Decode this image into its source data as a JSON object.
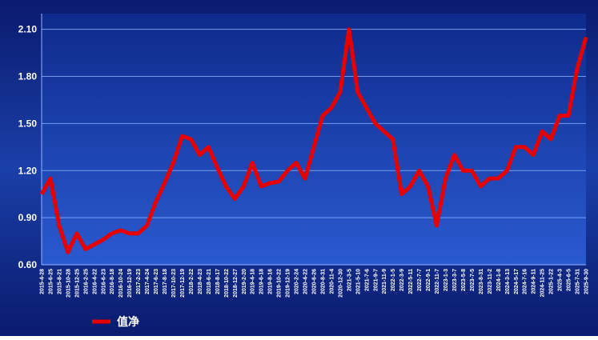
{
  "chart_data": {
    "type": "line",
    "categories": [
      "2015-4-28",
      "2015-6-25",
      "2015-8-21",
      "2015-10-28",
      "2015-12-25",
      "2016-2-25",
      "2016-4-22",
      "2016-6-23",
      "2016-8-18",
      "2016-10-24",
      "2016-12-19",
      "2017-2-23",
      "2017-4-24",
      "2017-6-23",
      "2017-8-18",
      "2017-10-23",
      "2017-12-19",
      "2018-2-22",
      "2018-4-23",
      "2018-6-21",
      "2018-8-17",
      "2018-10-22",
      "2018-12-27",
      "2019-2-20",
      "2019-4-18",
      "2019-6-18",
      "2019-8-16",
      "2019-10-22",
      "2019-12-19",
      "2020-2-24",
      "2020-4-22",
      "2020-6-26",
      "2020-8-31",
      "2020-11-4",
      "2020-12-30",
      "2021-3-5",
      "2021-5-10",
      "2021-7-6",
      "2021-9-7",
      "2021-11-9",
      "2022-1-5",
      "2022-3-9",
      "2022-5-11",
      "2022-7-7",
      "2022-9-1",
      "2022-11-7",
      "2023-1-3",
      "2023-3-7",
      "2023-5-8",
      "2023-7-5",
      "2023-8-31",
      "2023-11-2",
      "2024-1-8",
      "2024-3-13",
      "2024-5-17",
      "2024-7-16",
      "2024-9-11",
      "2024-11-25",
      "2025-1-22",
      "2025-4-3",
      "2025-6-5",
      "2025-7-31",
      "2025-9-30"
    ],
    "series": [
      {
        "name": "值净",
        "color": "#e60000",
        "values": [
          1.05,
          1.15,
          0.85,
          0.68,
          0.8,
          0.7,
          0.73,
          0.76,
          0.8,
          0.82,
          0.8,
          0.8,
          0.85,
          1.0,
          1.12,
          1.25,
          1.42,
          1.4,
          1.3,
          1.35,
          1.22,
          1.1,
          1.02,
          1.1,
          1.25,
          1.1,
          1.12,
          1.13,
          1.2,
          1.25,
          1.15,
          1.35,
          1.55,
          1.6,
          1.7,
          2.1,
          1.7,
          1.6,
          1.5,
          1.45,
          1.4,
          1.05,
          1.1,
          1.2,
          1.1,
          0.85,
          1.15,
          1.3,
          1.2,
          1.2,
          1.1,
          1.15,
          1.15,
          1.2,
          1.35,
          1.35,
          1.3,
          1.45,
          1.4,
          1.55,
          1.55,
          1.85,
          2.05
        ]
      }
    ],
    "ylim": [
      0.6,
      2.2
    ],
    "yticks": [
      {
        "value": 0.6,
        "label": "0.60"
      },
      {
        "value": 0.9,
        "label": "0.90"
      },
      {
        "value": 1.2,
        "label": "1.20"
      },
      {
        "value": 1.5,
        "label": "1.50"
      },
      {
        "value": 1.8,
        "label": "1.80"
      },
      {
        "value": 2.1,
        "label": "2.10"
      }
    ],
    "grid": true
  }
}
